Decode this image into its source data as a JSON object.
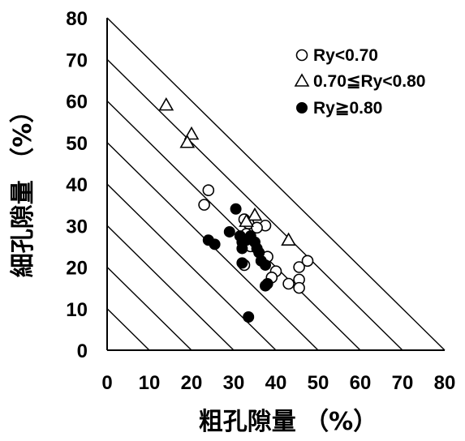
{
  "chart_data": {
    "type": "scatter",
    "title": "",
    "xlabel": "粗孔隙量 （%）",
    "ylabel": "細孔隙量 （%）",
    "xlim": [
      0,
      80
    ],
    "ylim": [
      0,
      80
    ],
    "x_ticks": [
      "0",
      "10",
      "20",
      "30",
      "40",
      "50",
      "60",
      "70",
      "80"
    ],
    "y_ticks": [
      "0",
      "10",
      "20",
      "30",
      "40",
      "50",
      "60",
      "70",
      "80"
    ],
    "diagonal_lines_sum": [
      10,
      20,
      30,
      40,
      50,
      60,
      70,
      80
    ],
    "grid": false,
    "legend_position": "top-right",
    "series": [
      {
        "name": "Ry<0.70",
        "marker": "open-circle",
        "points": [
          [
            24,
            38.5
          ],
          [
            23,
            35
          ],
          [
            32.5,
            31.5
          ],
          [
            33.5,
            30.5
          ],
          [
            37.5,
            30
          ],
          [
            35.5,
            29.5
          ],
          [
            33,
            28
          ],
          [
            34,
            25
          ],
          [
            38,
            22.5
          ],
          [
            40,
            19
          ],
          [
            39,
            17.5
          ],
          [
            43,
            16
          ],
          [
            45.5,
            17
          ],
          [
            45.5,
            15
          ],
          [
            45.5,
            20
          ],
          [
            47.5,
            21.5
          ],
          [
            32.5,
            20.5
          ]
        ]
      },
      {
        "name": "0.70≦Ry<0.80",
        "marker": "open-triangle",
        "points": [
          [
            14,
            59
          ],
          [
            20,
            52
          ],
          [
            19,
            50
          ],
          [
            35,
            32.5
          ],
          [
            33,
            31
          ],
          [
            43,
            26.5
          ]
        ]
      },
      {
        "name": "Ry≧0.80",
        "marker": "filled-circle",
        "points": [
          [
            24,
            26.5
          ],
          [
            25.5,
            25.5
          ],
          [
            29,
            28.5
          ],
          [
            30.5,
            34
          ],
          [
            31.5,
            27.5
          ],
          [
            32,
            26
          ],
          [
            32,
            24.5
          ],
          [
            33,
            26.5
          ],
          [
            34,
            27.5
          ],
          [
            35,
            26
          ],
          [
            35.5,
            24.5
          ],
          [
            36,
            23.5
          ],
          [
            36.5,
            21.5
          ],
          [
            37.5,
            20.5
          ],
          [
            37.5,
            15.5
          ],
          [
            38,
            16
          ],
          [
            32,
            21
          ],
          [
            33.5,
            8
          ]
        ]
      }
    ]
  }
}
